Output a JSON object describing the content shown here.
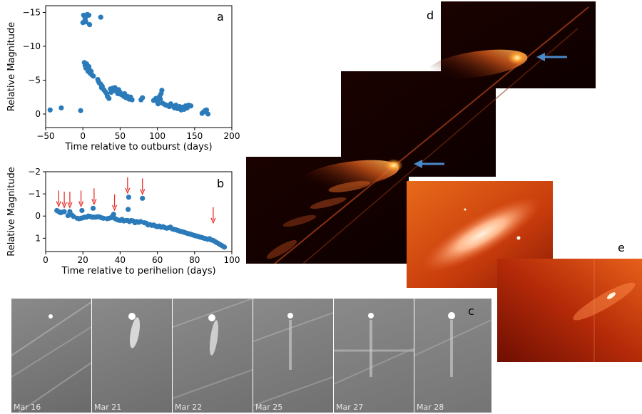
{
  "chart_data": [
    {
      "panel": "a",
      "type": "scatter",
      "title": "",
      "xlabel": "Time relative to outburst (days)",
      "ylabel": "Relative Magnitude",
      "xlim": [
        -50,
        200
      ],
      "ylim": [
        2,
        -16
      ],
      "xticks": [
        -50,
        0,
        50,
        100,
        150,
        200
      ],
      "yticks": [
        -15,
        -10,
        -5,
        0
      ],
      "xtick_labels": [
        "−50",
        "0",
        "50",
        "100",
        "150",
        "200"
      ],
      "ytick_labels": [
        "−15",
        "−10",
        "−5",
        "0"
      ],
      "points": [
        [
          -44,
          -0.6
        ],
        [
          -29,
          -0.9
        ],
        [
          -3,
          -0.5
        ],
        [
          0,
          -13.5
        ],
        [
          1,
          -14.6
        ],
        [
          2,
          -14.5
        ],
        [
          3,
          -14.0
        ],
        [
          4,
          -13.6
        ],
        [
          5,
          -14.5
        ],
        [
          6,
          -14.7
        ],
        [
          8,
          -14.6
        ],
        [
          9,
          -13.2
        ],
        [
          24,
          -14.3
        ],
        [
          2,
          -7.6
        ],
        [
          3,
          -7.2
        ],
        [
          4,
          -6.8
        ],
        [
          5,
          -7.4
        ],
        [
          6,
          -6.6
        ],
        [
          7,
          -6.3
        ],
        [
          8,
          -7.0
        ],
        [
          9,
          -6.5
        ],
        [
          10,
          -6.0
        ],
        [
          11,
          -6.3
        ],
        [
          12,
          -5.8
        ],
        [
          14,
          -5.6
        ],
        [
          20,
          -5.1
        ],
        [
          21,
          -4.8
        ],
        [
          22,
          -4.6
        ],
        [
          24,
          -4.4
        ],
        [
          25,
          -3.9
        ],
        [
          26,
          -4.1
        ],
        [
          28,
          -3.6
        ],
        [
          30,
          -3.3
        ],
        [
          32,
          -3.0
        ],
        [
          33,
          -2.6
        ],
        [
          35,
          -2.3
        ],
        [
          37,
          -3.7
        ],
        [
          38,
          -3.2
        ],
        [
          40,
          -3.8
        ],
        [
          41,
          -3.5
        ],
        [
          43,
          -3.9
        ],
        [
          44,
          -3.4
        ],
        [
          46,
          -3.3
        ],
        [
          47,
          -3.0
        ],
        [
          48,
          -3.6
        ],
        [
          50,
          -3.2
        ],
        [
          51,
          -2.9
        ],
        [
          53,
          -2.8
        ],
        [
          55,
          -2.6
        ],
        [
          56,
          -3.0
        ],
        [
          58,
          -2.4
        ],
        [
          60,
          -2.6
        ],
        [
          62,
          -2.2
        ],
        [
          64,
          -2.5
        ],
        [
          66,
          -2.1
        ],
        [
          78,
          -2.1
        ],
        [
          80,
          -2.4
        ],
        [
          95,
          -2.0
        ],
        [
          98,
          -2.3
        ],
        [
          100,
          -1.8
        ],
        [
          101,
          -1.5
        ],
        [
          103,
          -2.6
        ],
        [
          104,
          -2.2
        ],
        [
          105,
          -3.0
        ],
        [
          106,
          -3.5
        ],
        [
          107,
          -1.6
        ],
        [
          110,
          -1.4
        ],
        [
          112,
          -1.3
        ],
        [
          116,
          -1.1
        ],
        [
          118,
          -1.5
        ],
        [
          120,
          -1.2
        ],
        [
          123,
          -0.9
        ],
        [
          125,
          -1.3
        ],
        [
          127,
          -0.8
        ],
        [
          130,
          -1.1
        ],
        [
          132,
          -0.6
        ],
        [
          134,
          -1.0
        ],
        [
          136,
          -0.7
        ],
        [
          138,
          -1.2
        ],
        [
          140,
          -0.9
        ],
        [
          142,
          -1.3
        ],
        [
          145,
          -1.2
        ],
        [
          160,
          -0.1
        ],
        [
          162,
          -0.3
        ],
        [
          164,
          -0.5
        ],
        [
          166,
          -0.6
        ],
        [
          168,
          0.0
        ]
      ]
    },
    {
      "panel": "b",
      "type": "scatter",
      "title": "",
      "xlabel": "Time relative to perihelion (days)",
      "ylabel": "Relative Magnitude",
      "xlim": [
        0,
        100
      ],
      "ylim": [
        1.6,
        -2.0
      ],
      "xticks": [
        0,
        20,
        40,
        60,
        80,
        100
      ],
      "yticks": [
        -2,
        -1,
        0,
        1
      ],
      "xtick_labels": [
        "0",
        "20",
        "40",
        "60",
        "80",
        "100"
      ],
      "ytick_labels": [
        "−2",
        "−1",
        "0",
        "1"
      ],
      "outburst_arrows_x": [
        7,
        10,
        13,
        19,
        26,
        37,
        44,
        52,
        90
      ],
      "points": [
        [
          6,
          -0.25
        ],
        [
          7,
          -0.2
        ],
        [
          8,
          -0.15
        ],
        [
          9,
          -0.18
        ],
        [
          10,
          -0.2
        ],
        [
          12,
          -0.02
        ],
        [
          13,
          -0.2
        ],
        [
          14,
          -0.05
        ],
        [
          15,
          0.02
        ],
        [
          17,
          0.1
        ],
        [
          18,
          0.12
        ],
        [
          19,
          0.1
        ],
        [
          19.5,
          -0.25
        ],
        [
          20,
          0.08
        ],
        [
          21,
          0.05
        ],
        [
          22,
          0.05
        ],
        [
          23,
          0.0
        ],
        [
          24,
          0.02
        ],
        [
          25,
          0.05
        ],
        [
          25.5,
          -0.35
        ],
        [
          26,
          0.05
        ],
        [
          27,
          0.05
        ],
        [
          28,
          0.03
        ],
        [
          29,
          0.04
        ],
        [
          30,
          0.08
        ],
        [
          31,
          0.1
        ],
        [
          33,
          0.12
        ],
        [
          34,
          0.1
        ],
        [
          35,
          0.08
        ],
        [
          36,
          0.0
        ],
        [
          36.5,
          -0.08
        ],
        [
          37,
          0.1
        ],
        [
          38,
          0.15
        ],
        [
          39,
          0.18
        ],
        [
          40,
          0.2
        ],
        [
          41,
          0.15
        ],
        [
          42,
          0.22
        ],
        [
          43,
          0.2
        ],
        [
          44,
          0.2
        ],
        [
          44.3,
          -0.3
        ],
        [
          44.6,
          -0.85
        ],
        [
          45,
          0.25
        ],
        [
          46,
          0.2
        ],
        [
          47,
          0.22
        ],
        [
          48,
          0.3
        ],
        [
          49,
          0.25
        ],
        [
          50,
          0.28
        ],
        [
          51,
          0.25
        ],
        [
          52,
          -0.8
        ],
        [
          53,
          0.3
        ],
        [
          54,
          0.32
        ],
        [
          55,
          0.4
        ],
        [
          56,
          0.38
        ],
        [
          57,
          0.42
        ],
        [
          58,
          0.4
        ],
        [
          59,
          0.45
        ],
        [
          60,
          0.48
        ],
        [
          61,
          0.45
        ],
        [
          62,
          0.5
        ],
        [
          63,
          0.48
        ],
        [
          64,
          0.52
        ],
        [
          65,
          0.55
        ],
        [
          66,
          0.53
        ],
        [
          67,
          0.5
        ],
        [
          68,
          0.58
        ],
        [
          69,
          0.6
        ],
        [
          70,
          0.62
        ],
        [
          71,
          0.65
        ],
        [
          72,
          0.68
        ],
        [
          73,
          0.7
        ],
        [
          74,
          0.72
        ],
        [
          75,
          0.75
        ],
        [
          76,
          0.78
        ],
        [
          77,
          0.8
        ],
        [
          78,
          0.82
        ],
        [
          79,
          0.85
        ],
        [
          80,
          0.88
        ],
        [
          81,
          0.9
        ],
        [
          82,
          0.92
        ],
        [
          83,
          0.95
        ],
        [
          84,
          0.97
        ],
        [
          85,
          1.0
        ],
        [
          86,
          1.02
        ],
        [
          87,
          1.05
        ],
        [
          88,
          1.02
        ],
        [
          89,
          1.08
        ],
        [
          90,
          1.1
        ],
        [
          91,
          1.15
        ],
        [
          92,
          1.2
        ],
        [
          93,
          1.25
        ],
        [
          94,
          1.3
        ],
        [
          95,
          1.35
        ],
        [
          96,
          1.4
        ]
      ]
    }
  ],
  "labels": {
    "a": "a",
    "b": "b",
    "c": "c",
    "d": "d",
    "e": "e"
  },
  "colors": {
    "marker": "#2b7bba",
    "arrow_red": "#e8302a",
    "arrow_blue": "#4a88c7"
  },
  "panel_c": {
    "frames": [
      {
        "date": "Mar 16"
      },
      {
        "date": "Mar 21"
      },
      {
        "date": "Mar 22"
      },
      {
        "date": "Mar 25"
      },
      {
        "date": "Mar 27"
      },
      {
        "date": "Mar 28"
      }
    ]
  }
}
